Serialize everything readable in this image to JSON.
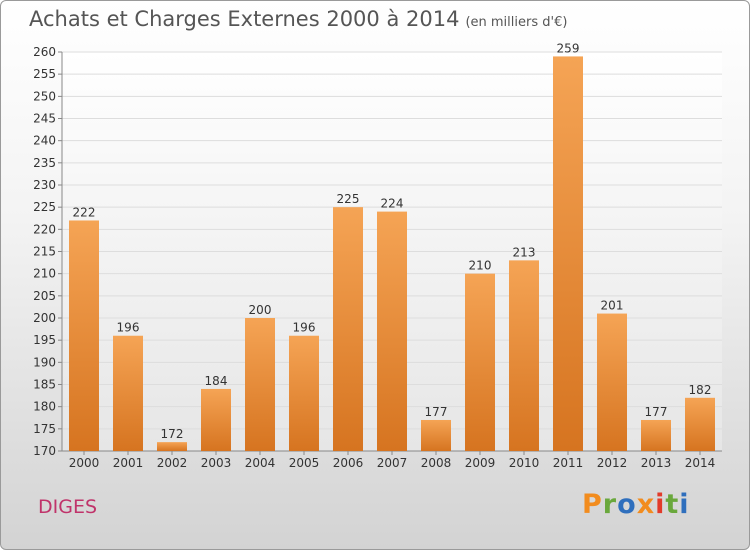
{
  "header": {
    "title": "Achats et Charges Externes 2000 à 2014",
    "subtitle": "(en milliers d'€)"
  },
  "footer": {
    "commune": "DIGES",
    "brand": "Proxiti",
    "brand_colors": [
      "#f28c1e",
      "#6aa83c",
      "#2f6fbd",
      "#f28c1e",
      "#e23b2a",
      "#6aa83c",
      "#2f6fbd"
    ]
  },
  "chart_data": {
    "type": "bar",
    "categories": [
      "2000",
      "2001",
      "2002",
      "2003",
      "2004",
      "2005",
      "2006",
      "2007",
      "2008",
      "2009",
      "2010",
      "2011",
      "2012",
      "2013",
      "2014"
    ],
    "values": [
      222,
      196,
      172,
      184,
      200,
      196,
      225,
      224,
      177,
      210,
      213,
      259,
      201,
      177,
      182
    ],
    "title": "Achats et Charges Externes 2000 à 2014",
    "subtitle": "(en milliers d'€)",
    "xlabel": "",
    "ylabel": "",
    "ylim": [
      170,
      260
    ],
    "ytick_step": 5,
    "grid": true,
    "data_labels": true,
    "bar_color_light": "#f5a455",
    "bar_color_dark": "#d67420"
  }
}
